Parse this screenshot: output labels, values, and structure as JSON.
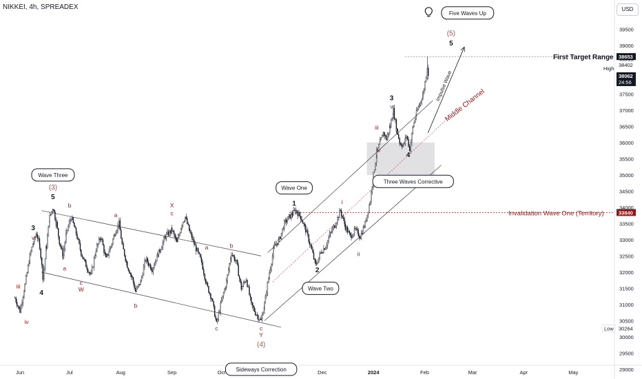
{
  "header": {
    "symbol": "NIKKEI, 4h, SPREADEX",
    "currency": "USD"
  },
  "colors": {
    "candle": "#131722",
    "wave_red": "#8b1a1a",
    "wave_dark": "#131722",
    "grid_line": "#9598a1",
    "channel": "#131722",
    "middle_channel": "#c2185b",
    "gray_box": "#d9d9dc",
    "tag_bg": "#131722"
  },
  "chart_data": {
    "type": "line",
    "description_free": true,
    "ylim": [
      28700,
      40400
    ],
    "y_ticks": [
      29000,
      29500,
      30000,
      30500,
      31000,
      31500,
      32000,
      32500,
      33000,
      33500,
      34000,
      34500,
      35000,
      35500,
      36000,
      36500,
      37000,
      37500,
      38000,
      38500,
      39000,
      39500
    ],
    "x_ticks": [
      {
        "label": "Jun",
        "i": 0
      },
      {
        "label": "Jul",
        "i": 1
      },
      {
        "label": "Aug",
        "i": 2
      },
      {
        "label": "Sep",
        "i": 3
      },
      {
        "label": "Oct",
        "i": 4
      },
      {
        "label": "Nov",
        "i": 5
      },
      {
        "label": "Dec",
        "i": 6
      },
      {
        "label": "2024",
        "i": 7
      },
      {
        "label": "Feb",
        "i": 8
      },
      {
        "label": "Mar",
        "i": 9
      },
      {
        "label": "Apr",
        "i": 10
      },
      {
        "label": "May",
        "i": 11
      }
    ],
    "x_tick_days": [
      0,
      30,
      61,
      92,
      122,
      153,
      183,
      214,
      245,
      274,
      305,
      335
    ],
    "price_path": [
      [
        -3,
        31200
      ],
      [
        0,
        30800
      ],
      [
        3,
        31600
      ],
      [
        6,
        32500
      ],
      [
        8,
        32900
      ],
      [
        10,
        33200
      ],
      [
        12,
        32800
      ],
      [
        14,
        31800
      ],
      [
        16,
        32800
      ],
      [
        18,
        33700
      ],
      [
        20,
        34000
      ],
      [
        22,
        33500
      ],
      [
        24,
        32900
      ],
      [
        26,
        32500
      ],
      [
        28,
        33200
      ],
      [
        31,
        33700
      ],
      [
        34,
        33200
      ],
      [
        37,
        32600
      ],
      [
        40,
        32200
      ],
      [
        43,
        31900
      ],
      [
        46,
        32700
      ],
      [
        49,
        33100
      ],
      [
        52,
        32400
      ],
      [
        55,
        32800
      ],
      [
        58,
        33300
      ],
      [
        60,
        33500
      ],
      [
        62,
        32800
      ],
      [
        65,
        32200
      ],
      [
        68,
        31800
      ],
      [
        70,
        31400
      ],
      [
        73,
        31700
      ],
      [
        76,
        32400
      ],
      [
        80,
        32100
      ],
      [
        84,
        32600
      ],
      [
        88,
        33100
      ],
      [
        92,
        33300
      ],
      [
        95,
        32900
      ],
      [
        98,
        33500
      ],
      [
        100,
        33700
      ],
      [
        103,
        33200
      ],
      [
        106,
        32800
      ],
      [
        110,
        32300
      ],
      [
        113,
        31600
      ],
      [
        116,
        31200
      ],
      [
        119,
        30400
      ],
      [
        122,
        31100
      ],
      [
        125,
        31700
      ],
      [
        128,
        32600
      ],
      [
        131,
        32300
      ],
      [
        134,
        31500
      ],
      [
        137,
        31800
      ],
      [
        140,
        31000
      ],
      [
        143,
        30700
      ],
      [
        146,
        30500
      ],
      [
        148,
        31000
      ],
      [
        151,
        32000
      ],
      [
        154,
        32800
      ],
      [
        157,
        33000
      ],
      [
        160,
        33500
      ],
      [
        163,
        33700
      ],
      [
        165,
        33800
      ],
      [
        167,
        33900
      ],
      [
        170,
        33700
      ],
      [
        173,
        33300
      ],
      [
        176,
        32800
      ],
      [
        179,
        32200
      ],
      [
        182,
        32600
      ],
      [
        185,
        32800
      ],
      [
        188,
        33200
      ],
      [
        191,
        33500
      ],
      [
        194,
        33900
      ],
      [
        197,
        33400
      ],
      [
        200,
        33100
      ],
      [
        203,
        33300
      ],
      [
        206,
        33100
      ],
      [
        209,
        33500
      ],
      [
        212,
        34200
      ],
      [
        214,
        35000
      ],
      [
        216,
        35700
      ],
      [
        218,
        36000
      ],
      [
        220,
        36300
      ],
      [
        222,
        36100
      ],
      [
        224,
        36500
      ],
      [
        226,
        37000
      ],
      [
        228,
        36400
      ],
      [
        230,
        36000
      ],
      [
        232,
        35900
      ],
      [
        234,
        36200
      ],
      [
        236,
        35800
      ],
      [
        238,
        36500
      ],
      [
        240,
        36900
      ],
      [
        242,
        37200
      ],
      [
        244,
        37500
      ],
      [
        246,
        38100
      ]
    ],
    "price_labels": [
      {
        "value": 38653,
        "label": "38653",
        "style": "dark"
      },
      {
        "value": 38402,
        "label": "38402",
        "style": "plain"
      },
      {
        "value": 38062,
        "label": "38062",
        "sublabel": "24:56",
        "style": "dark"
      },
      {
        "value": 33840,
        "label": "33840",
        "style": "red"
      },
      {
        "value": 30264,
        "label": "30264",
        "style": "plain"
      }
    ],
    "high_label": "High",
    "low_label": "Low",
    "horizontal_levels": [
      {
        "value": 38653,
        "from_day": 233,
        "style": "dotted",
        "label": "First Target Range"
      },
      {
        "value": 33840,
        "from_day": 163,
        "style": "dotted-red",
        "label": "Invalidation Wave One (Territory)"
      }
    ],
    "gray_zone": {
      "day_from": 210,
      "day_to": 251,
      "y_from": 35000,
      "y_to": 36000
    },
    "channels": [
      {
        "from": [
          13,
          33900
        ],
        "to": [
          146,
          32500
        ],
        "style": "solid"
      },
      {
        "from": [
          13,
          32000
        ],
        "to": [
          158,
          30300
        ],
        "style": "solid"
      },
      {
        "from": [
          150,
          32600
        ],
        "to": [
          250,
          37300
        ],
        "style": "solid"
      },
      {
        "from": [
          148,
          30500
        ],
        "to": [
          255,
          35300
        ],
        "style": "solid"
      },
      {
        "from": [
          153,
          31700
        ],
        "to": [
          260,
          36800
        ],
        "style": "dotted-pink"
      }
    ],
    "impulse_arrow": {
      "from": [
        247,
        36300
      ],
      "to": [
        269,
        38950
      ],
      "label": "Impulse Wave"
    },
    "middle_channel_label": {
      "day": 270,
      "value": 37100,
      "text": "Middle Channel"
    },
    "wave_labels": [
      {
        "t": "iii",
        "d": -1,
        "v": 31500,
        "c": "red"
      },
      {
        "t": "iv",
        "d": 4,
        "v": 30400,
        "c": "red"
      },
      {
        "t": "3",
        "d": 8,
        "v": 33300,
        "c": "dark"
      },
      {
        "t": "v",
        "d": 8,
        "v": 33000,
        "c": "red"
      },
      {
        "t": "4",
        "d": 13,
        "v": 31300,
        "c": "dark"
      },
      {
        "t": "5",
        "d": 20,
        "v": 34250,
        "c": "dark"
      },
      {
        "t": "(3)",
        "d": 20,
        "v": 34550,
        "c": "red"
      },
      {
        "t": "a",
        "d": 27,
        "v": 32050,
        "c": "red"
      },
      {
        "t": "b",
        "d": 30,
        "v": 34000,
        "c": "red"
      },
      {
        "t": "c",
        "d": 37,
        "v": 31600,
        "c": "red"
      },
      {
        "t": "W",
        "d": 37,
        "v": 31400,
        "c": "red"
      },
      {
        "t": "a",
        "d": 58,
        "v": 33700,
        "c": "red"
      },
      {
        "t": "b",
        "d": 70,
        "v": 30900,
        "c": "red"
      },
      {
        "t": "X",
        "d": 92,
        "v": 34000,
        "c": "red"
      },
      {
        "t": "c",
        "d": 92,
        "v": 33750,
        "c": "red"
      },
      {
        "t": "a",
        "d": 113,
        "v": 32700,
        "c": "red"
      },
      {
        "t": "b",
        "d": 128,
        "v": 32750,
        "c": "red"
      },
      {
        "t": "c",
        "d": 119,
        "v": 30200,
        "c": "red"
      },
      {
        "t": "c",
        "d": 146,
        "v": 30200,
        "c": "red"
      },
      {
        "t": "Y",
        "d": 146,
        "v": 30000,
        "c": "red"
      },
      {
        "t": "(4)",
        "d": 146,
        "v": 29700,
        "c": "red"
      },
      {
        "t": "1",
        "d": 166,
        "v": 34050,
        "c": "dark"
      },
      {
        "t": "2",
        "d": 180,
        "v": 32000,
        "c": "dark"
      },
      {
        "t": "i",
        "d": 195,
        "v": 34100,
        "c": "red"
      },
      {
        "t": "ii",
        "d": 205,
        "v": 32500,
        "c": "red"
      },
      {
        "t": "iii",
        "d": 216,
        "v": 36400,
        "c": "red"
      },
      {
        "t": "iv",
        "d": 217,
        "v": 35700,
        "c": "red"
      },
      {
        "t": "3",
        "d": 225,
        "v": 37300,
        "c": "dark"
      },
      {
        "t": "v",
        "d": 225,
        "v": 37050,
        "c": "red"
      },
      {
        "t": "4",
        "d": 235,
        "v": 35550,
        "c": "dark"
      },
      {
        "t": "(5)",
        "d": 261,
        "v": 39300,
        "c": "red"
      },
      {
        "t": "5",
        "d": 261,
        "v": 39000,
        "c": "dark"
      }
    ],
    "callouts": [
      {
        "t": "Wave Three",
        "d": 20,
        "v": 35000
      },
      {
        "t": "Wave One",
        "d": 166,
        "v": 34600
      },
      {
        "t": "Wave Two",
        "d": 182,
        "v": 31500
      },
      {
        "t": "Three Waves Corrective",
        "d": 238,
        "v": 34800
      },
      {
        "t": "Sideways Correction",
        "d": 146,
        "v": 29000
      },
      {
        "t": "Five Waves Up",
        "d": 271,
        "v": 40000
      }
    ],
    "bulb_icon": {
      "day": 247,
      "value": 40000
    }
  }
}
